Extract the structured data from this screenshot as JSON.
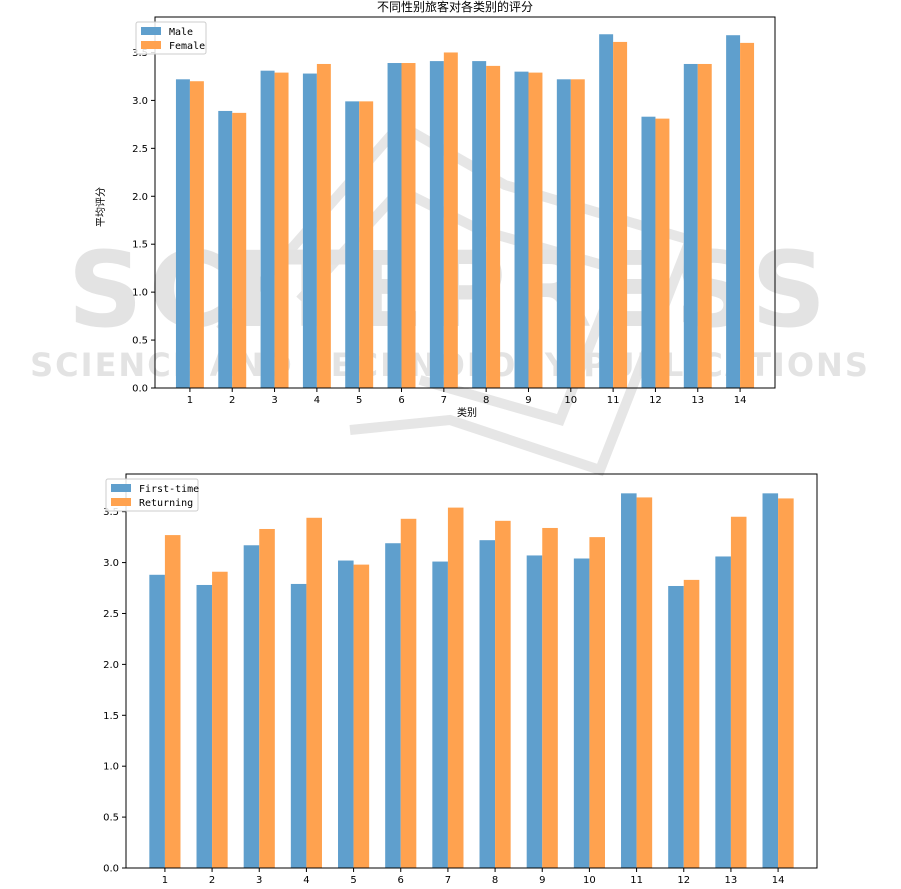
{
  "watermark": {
    "main": "SCITEPRESS",
    "sub": "SCIENCE AND TECHNOLOGY PUBLICATIONS"
  },
  "chart_data": [
    {
      "type": "bar",
      "title": "不同性别旅客对各类别的评分",
      "xlabel": "类别",
      "ylabel": "平均评分",
      "categories": [
        "1",
        "2",
        "3",
        "4",
        "5",
        "6",
        "7",
        "8",
        "9",
        "10",
        "11",
        "12",
        "13",
        "14"
      ],
      "series": [
        {
          "name": "Male",
          "color": "#5f9fcd",
          "values": [
            3.22,
            2.89,
            3.31,
            3.28,
            2.99,
            3.39,
            3.41,
            3.41,
            3.3,
            3.22,
            3.69,
            2.83,
            3.38,
            3.68
          ]
        },
        {
          "name": "Female",
          "color": "#ffa24f",
          "values": [
            3.2,
            2.87,
            3.29,
            3.38,
            2.99,
            3.39,
            3.5,
            3.36,
            3.29,
            3.22,
            3.61,
            2.81,
            3.38,
            3.6
          ]
        }
      ],
      "yticks": [
        0.0,
        0.5,
        1.0,
        1.5,
        2.0,
        2.5,
        3.0,
        3.5
      ],
      "ylim": [
        0,
        3.87
      ],
      "legend": "top-left",
      "grid": false
    },
    {
      "type": "bar",
      "title": "",
      "xlabel": "",
      "ylabel": "",
      "categories": [
        "1",
        "2",
        "3",
        "4",
        "5",
        "6",
        "7",
        "8",
        "9",
        "10",
        "11",
        "12",
        "13",
        "14"
      ],
      "series": [
        {
          "name": "First-time",
          "color": "#5f9fcd",
          "values": [
            2.88,
            2.78,
            3.17,
            2.79,
            3.02,
            3.19,
            3.01,
            3.22,
            3.07,
            3.04,
            3.68,
            2.77,
            3.06,
            3.68
          ]
        },
        {
          "name": "Returning",
          "color": "#ffa24f",
          "values": [
            3.27,
            2.91,
            3.33,
            3.44,
            2.98,
            3.43,
            3.54,
            3.41,
            3.34,
            3.25,
            3.64,
            2.83,
            3.45,
            3.63
          ]
        }
      ],
      "yticks": [
        0.0,
        0.5,
        1.0,
        1.5,
        2.0,
        2.5,
        3.0,
        3.5
      ],
      "ylim": [
        0,
        3.87
      ],
      "legend": "top-left",
      "grid": false
    }
  ]
}
